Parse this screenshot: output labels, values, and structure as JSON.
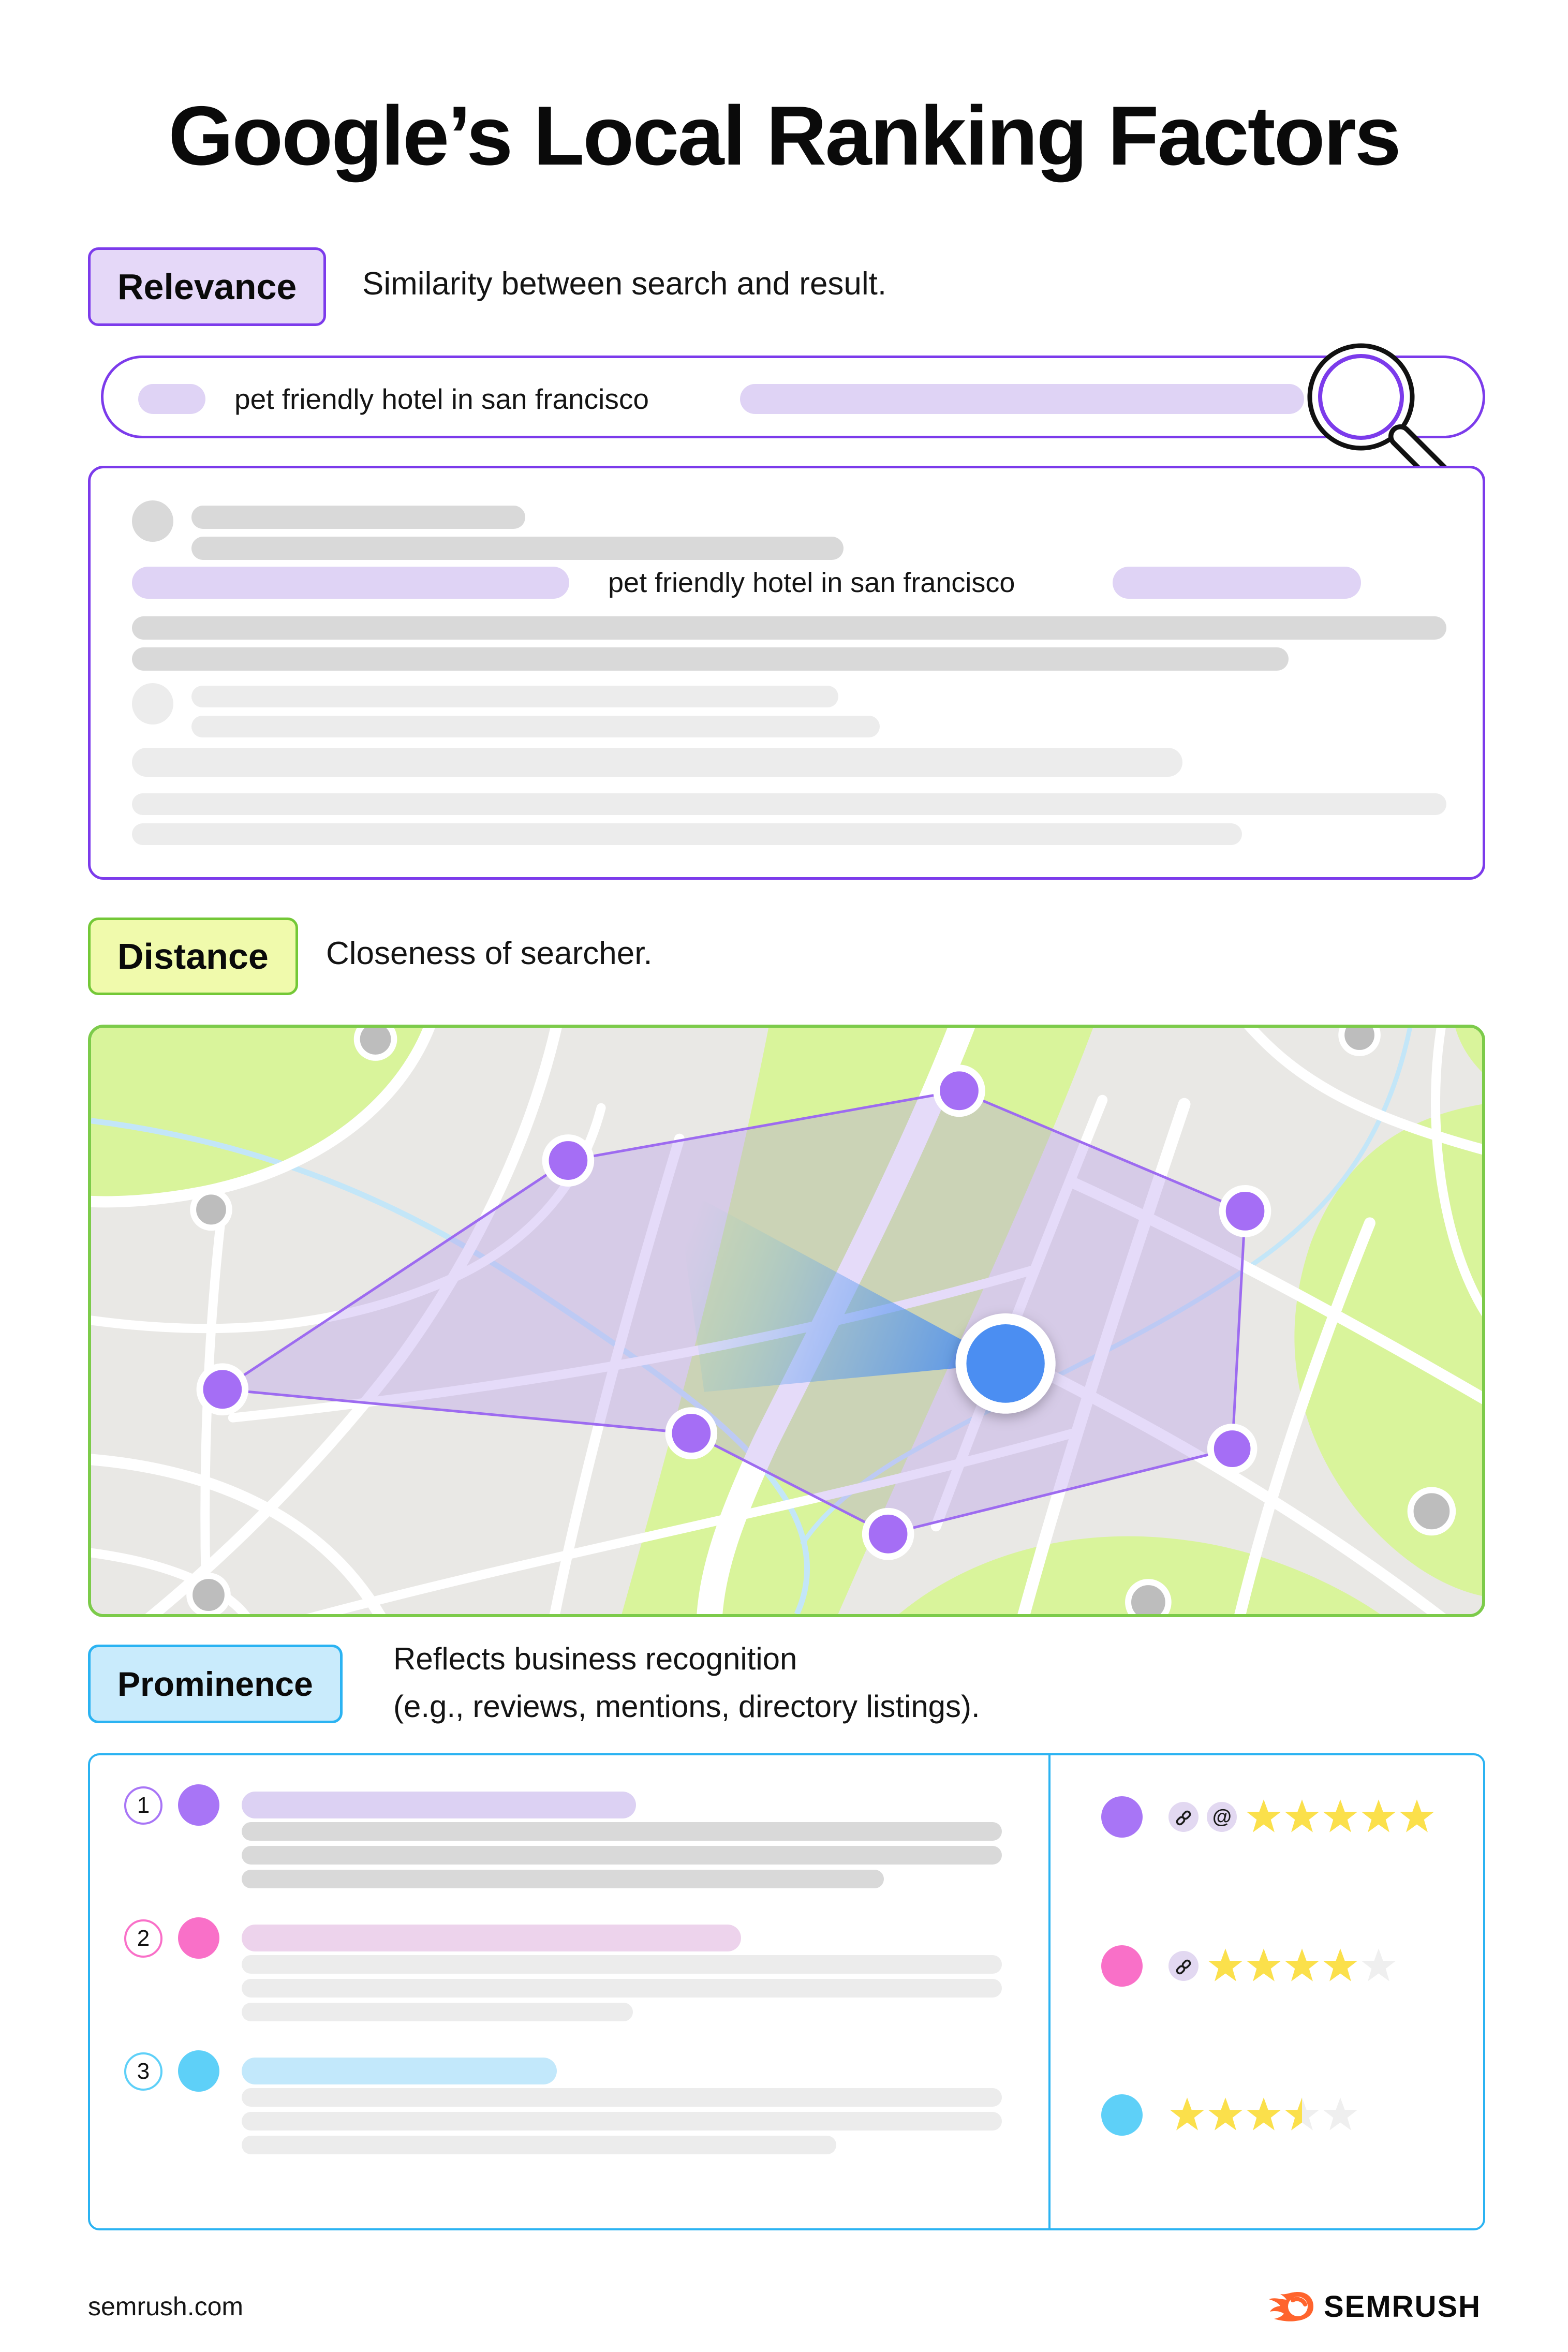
{
  "page": {
    "title": "Google’s Local Ranking Factors",
    "footer": {
      "site": "semrush.com",
      "brand": "SEMRUSH",
      "brand_color": "#FF642D"
    }
  },
  "relevance": {
    "label": "Relevance",
    "description": "Similarity between search and result.",
    "accent": "#7C3BEB",
    "badge_fill": "#E5D8F8",
    "search_query": "pet friendly hotel in san francisco",
    "result_highlight": "pet friendly hotel in san francisco"
  },
  "distance": {
    "label": "Distance",
    "description": "Closeness of searcher.",
    "accent": "#74C837",
    "badge_fill": "#F0FAAC",
    "map_border": "#7CCB4A",
    "marker_color": "#A56EF5",
    "searcher_color": "#4B8EF2"
  },
  "prominence": {
    "label": "Prominence",
    "description_line1": "Reflects business recognition",
    "description_line2": "(e.g., reviews, mentions, directory listings).",
    "accent": "#2BB3F2",
    "badge_fill": "#C9EBFC",
    "rating_scale": 5,
    "star_color": "#FBE04B",
    "star_empty_color": "#EFEFEF",
    "listings": [
      {
        "rank": "1",
        "color": "#A875F6",
        "title_fill": "#DCD1F3",
        "badges": [
          "link-icon",
          "at-icon"
        ],
        "rating": 5
      },
      {
        "rank": "2",
        "color": "#F970C8",
        "title_fill": "#EDD3EC",
        "badges": [
          "link-icon"
        ],
        "rating": 4
      },
      {
        "rank": "3",
        "color": "#5ED0F8",
        "title_fill": "#C2E8FB",
        "badges": [],
        "rating": 3.5
      }
    ]
  }
}
